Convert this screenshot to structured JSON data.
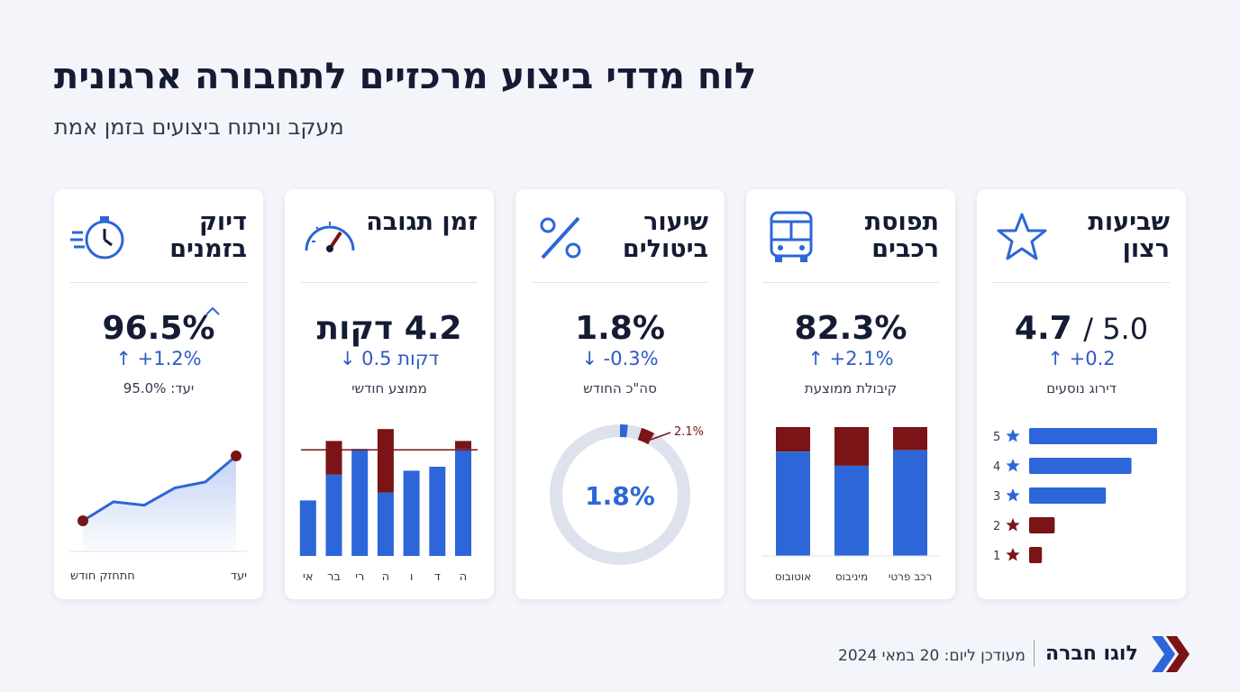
{
  "header": {
    "title": "לוח מדדי ביצוע מרכזיים לתחבורה ארגונית",
    "subtitle": "מעקב וניתוח ביצועים בזמן אמת"
  },
  "colors": {
    "blue": "#2c66d8",
    "maroon": "#7a1416",
    "navy": "#141b33",
    "accent_text": "#2e5cc4"
  },
  "cards": {
    "ontime": {
      "title": "דיוק בזמנים",
      "icon": "stopwatch-icon",
      "value": "96.5%",
      "delta": "↑ +1.2%",
      "note": "יעד: 95.0%",
      "x_labels": [
        "יעד",
        "חתחזק חודש"
      ],
      "trend": [
        0,
        0.22,
        0.18,
        0.38,
        0.45,
        0.75
      ],
      "start": 0.0,
      "end": 1.0
    },
    "response": {
      "title": "זמן תגובה",
      "icon": "speedometer-icon",
      "value": "4.2 דקות",
      "delta": "↓ 0.5 דקות",
      "note": "ממוצע חודשי",
      "days": [
        "ה",
        "ד",
        "ו",
        "ה",
        "רי",
        "בר",
        "אי"
      ],
      "bars_blue": [
        5.4,
        4.5,
        4.3,
        3.2,
        5.4,
        4.1,
        2.8
      ],
      "bars_maroon_top": [
        5.8,
        0,
        0,
        6.4,
        0,
        5.8,
        0
      ],
      "target": 5.4
    },
    "cancel": {
      "title": "שיעור ביטולים",
      "icon": "percent-icon",
      "value": "1.8%",
      "delta": "↓ -0.3%",
      "note": "סה\"כ החודש",
      "donut_value": "1.8%",
      "donut_fraction": 0.018,
      "target_label": "2.1%",
      "target_fraction": 0.021
    },
    "fleet": {
      "title": "תפוסת רכבים",
      "icon": "bus-icon",
      "value": "82.3%",
      "delta": "↑ +2.1%",
      "note": "קיבולת ממוצעת",
      "categories": [
        "רכב פרטי",
        "מיניבוס",
        "אוטובוס"
      ],
      "used": [
        0.82,
        0.7,
        0.81
      ],
      "free": [
        0.18,
        0.3,
        0.19
      ]
    },
    "satisfaction": {
      "title": "שביעות רצון",
      "icon": "star-icon",
      "value": "4.7",
      "scale": "/ 5.0",
      "delta": "↑ +0.2",
      "note": "דירוג נוסעים",
      "ratings": [
        {
          "stars": "5",
          "share": 1.0
        },
        {
          "stars": "4",
          "share": 0.8
        },
        {
          "stars": "3",
          "share": 0.6
        },
        {
          "stars": "2",
          "share": 0.2
        },
        {
          "stars": "1",
          "share": 0.1
        }
      ]
    }
  },
  "footer": {
    "updated": "מעודכן ליום: 20 במאי 2024",
    "brand": "לוגו חברה",
    "logo_icon": "chevrons-logo-icon"
  }
}
